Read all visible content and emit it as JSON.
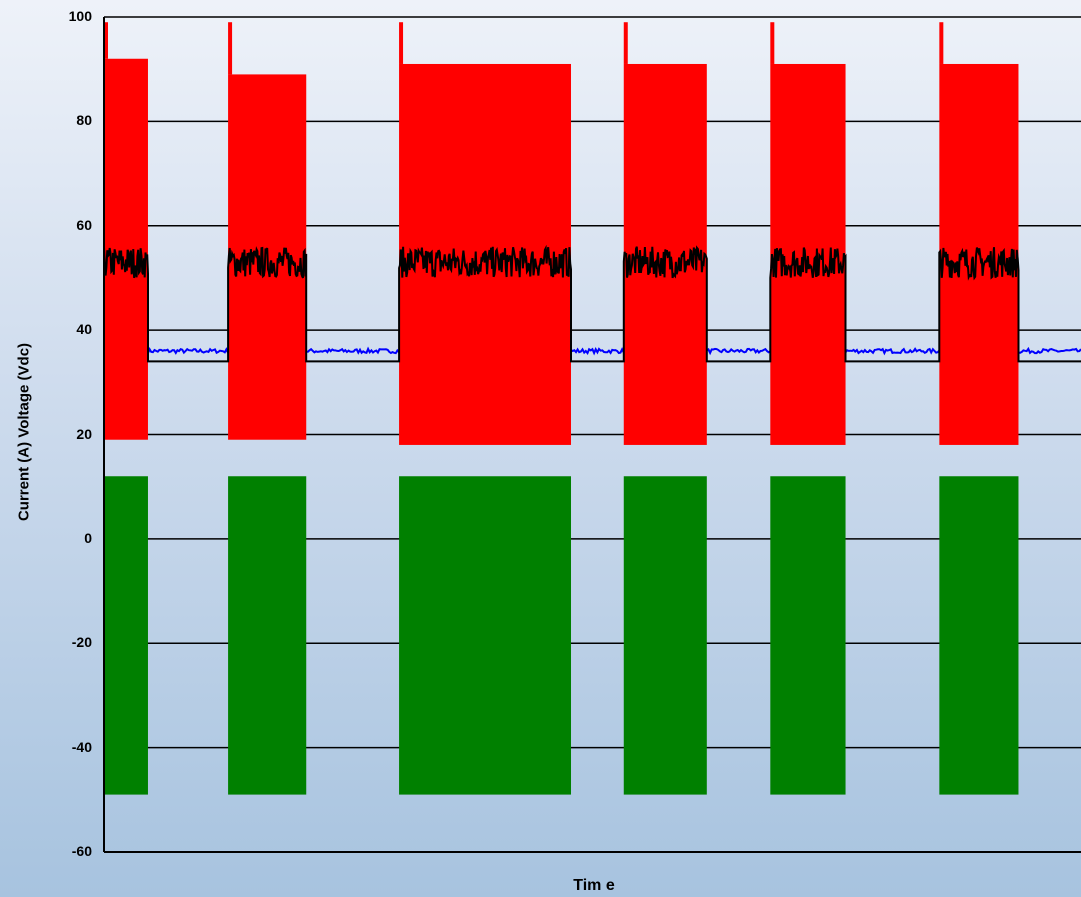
{
  "chart_data": {
    "type": "line",
    "title": "",
    "xlabel": "Tim e",
    "ylabel": "Current (A)  Voltage (Vdc)",
    "ylim": [
      -60,
      100
    ],
    "yticks": [
      100,
      80,
      60,
      40,
      20,
      0,
      -20,
      -40,
      -60
    ],
    "ytick_labels": [
      "100",
      "80",
      "60",
      "40",
      "20",
      "0",
      "-20",
      "-40",
      "-60"
    ],
    "grid": true,
    "legend": "none",
    "colors": {
      "red": "#ff0000",
      "green": "#008000",
      "black": "#000000",
      "blue": "#0000ff"
    },
    "on_intervals": [
      [
        0.0,
        4.5
      ],
      [
        12.7,
        20.7
      ],
      [
        30.2,
        47.8
      ],
      [
        53.2,
        61.7
      ],
      [
        68.2,
        75.9
      ],
      [
        85.5,
        93.6
      ]
    ],
    "x_range": [
      0,
      100
    ],
    "series": [
      {
        "color": "red",
        "segments": [
          {
            "interval": [
              0.0,
              4.5
            ],
            "high": 92,
            "low": 19
          },
          {
            "interval": [
              12.7,
              20.7
            ],
            "high": 89,
            "low": 19
          },
          {
            "interval": [
              30.2,
              47.8
            ],
            "high": 91,
            "low": 18
          },
          {
            "interval": [
              53.2,
              61.7
            ],
            "high": 91,
            "low": 18
          },
          {
            "interval": [
              68.2,
              75.9
            ],
            "high": 91,
            "low": 18
          },
          {
            "interval": [
              85.5,
              93.6
            ],
            "high": 91,
            "low": 18
          }
        ]
      },
      {
        "color": "green",
        "segments": [
          {
            "interval": [
              0.0,
              4.5
            ],
            "high": 12,
            "low": -49
          },
          {
            "interval": [
              12.7,
              20.7
            ],
            "high": 12,
            "low": -49
          },
          {
            "interval": [
              30.2,
              47.8
            ],
            "high": 12,
            "low": -49
          },
          {
            "interval": [
              53.2,
              61.7
            ],
            "high": 12,
            "low": -49
          },
          {
            "interval": [
              68.2,
              75.9
            ],
            "high": 12,
            "low": -49
          },
          {
            "interval": [
              85.5,
              93.6
            ],
            "high": 12,
            "low": -49
          }
        ]
      },
      {
        "color": "black",
        "on_level": 53,
        "off_level": 34
      },
      {
        "color": "blue",
        "off_level": 36
      }
    ]
  }
}
